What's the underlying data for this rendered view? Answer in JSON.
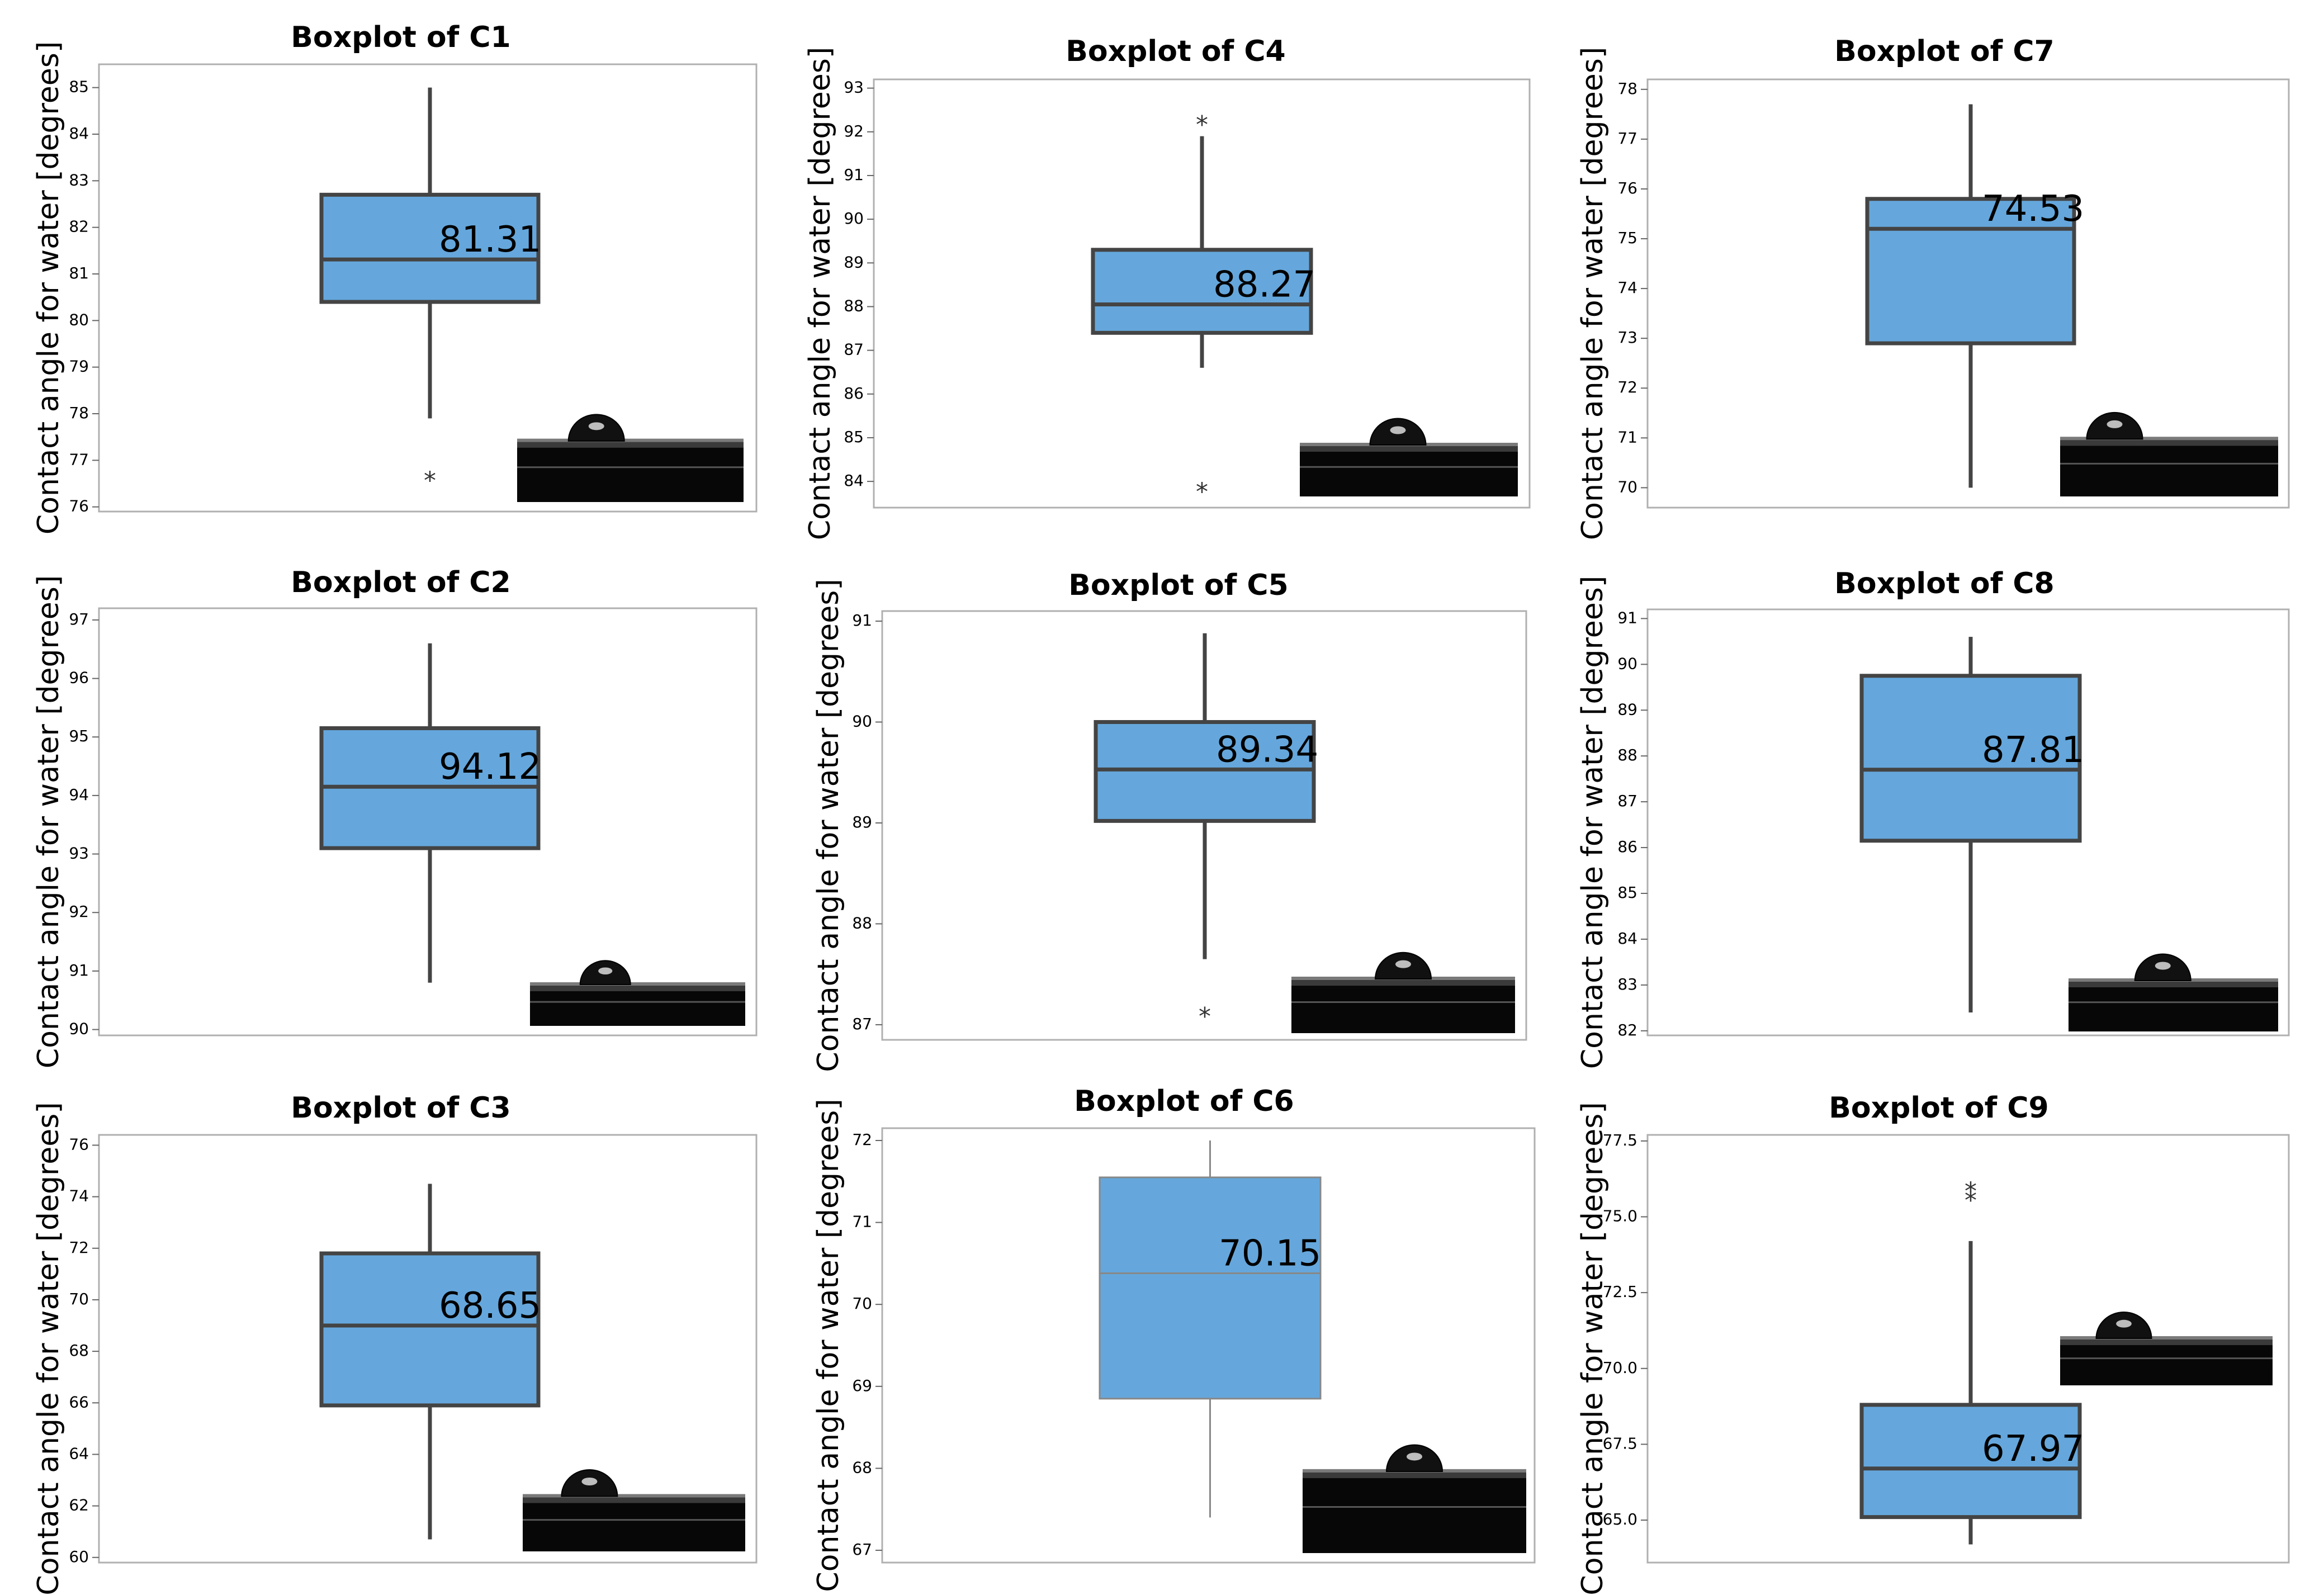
{
  "chart_data": [
    {
      "type": "box",
      "title": "Boxplot of C1",
      "ylabel": "Contact angle for water [degrees]",
      "ylim": [
        75.9,
        85.5
      ],
      "ticks": [
        76,
        77,
        78,
        79,
        80,
        81,
        82,
        83,
        84,
        85
      ],
      "q1": 80.4,
      "median": 81.31,
      "q3": 82.7,
      "whisker_low": 77.9,
      "whisker_high": 85.0,
      "outliers": [
        76.6
      ],
      "label": "81.31",
      "colors": {
        "box": "#65a7dc",
        "edge": "#444444"
      }
    },
    {
      "type": "box",
      "title": "Boxplot of C4",
      "ylabel": "Contact angle for water [degrees]",
      "ylim": [
        83.4,
        93.2
      ],
      "ticks": [
        84,
        85,
        86,
        87,
        88,
        89,
        90,
        91,
        92,
        93
      ],
      "q1": 87.4,
      "median": 88.05,
      "q3": 89.3,
      "whisker_low": 86.6,
      "whisker_high": 91.9,
      "outliers": [
        92.2,
        83.8
      ],
      "label": "88.27",
      "colors": {
        "box": "#65a7dc",
        "edge": "#444444"
      }
    },
    {
      "type": "box",
      "title": "Boxplot of C7",
      "ylabel": "Contact angle for water [degrees]",
      "ylim": [
        69.6,
        78.2
      ],
      "ticks": [
        70,
        71,
        72,
        73,
        74,
        75,
        76,
        77,
        78
      ],
      "q1": 72.9,
      "median": 75.2,
      "q3": 75.8,
      "whisker_low": 70.0,
      "whisker_high": 77.7,
      "outliers": [],
      "label": "74.53",
      "colors": {
        "box": "#65a7dc",
        "edge": "#444444"
      }
    },
    {
      "type": "box",
      "title": "Boxplot of C2",
      "ylabel": "Contact angle for water [degrees]",
      "ylim": [
        89.9,
        97.2
      ],
      "ticks": [
        90,
        91,
        92,
        93,
        94,
        95,
        96,
        97
      ],
      "q1": 93.1,
      "median": 94.15,
      "q3": 95.15,
      "whisker_low": 90.8,
      "whisker_high": 96.6,
      "outliers": [],
      "label": "94.12",
      "colors": {
        "box": "#65a7dc",
        "edge": "#444444"
      }
    },
    {
      "type": "box",
      "title": "Boxplot of C5",
      "ylabel": "Contact angle for water [degrees]",
      "ylim": [
        86.85,
        91.1
      ],
      "ticks": [
        87,
        88,
        89,
        90,
        91
      ],
      "q1": 89.02,
      "median": 89.53,
      "q3": 90.0,
      "whisker_low": 87.65,
      "whisker_high": 90.88,
      "outliers": [
        87.1
      ],
      "label": "89.34",
      "colors": {
        "box": "#65a7dc",
        "edge": "#444444"
      }
    },
    {
      "type": "box",
      "title": "Boxplot of C8",
      "ylabel": "Contact angle for water [degrees]",
      "ylim": [
        81.9,
        91.2
      ],
      "ticks": [
        82,
        83,
        84,
        85,
        86,
        87,
        88,
        89,
        90,
        91
      ],
      "q1": 86.15,
      "median": 87.7,
      "q3": 89.75,
      "whisker_low": 82.4,
      "whisker_high": 90.6,
      "outliers": [],
      "label": "87.81",
      "colors": {
        "box": "#65a7dc",
        "edge": "#444444"
      }
    },
    {
      "type": "box",
      "title": "Boxplot of C3",
      "ylabel": "Contact angle for water [degrees]",
      "ylim": [
        59.8,
        76.4
      ],
      "ticks": [
        60,
        62,
        64,
        66,
        68,
        70,
        72,
        74,
        76
      ],
      "q1": 65.9,
      "median": 69.0,
      "q3": 71.8,
      "whisker_low": 60.7,
      "whisker_high": 74.5,
      "outliers": [],
      "label": "68.65",
      "colors": {
        "box": "#65a7dc",
        "edge": "#444444"
      }
    },
    {
      "type": "box",
      "title": "Boxplot of C6",
      "ylabel": "Contact angle for water [degrees]",
      "ylim": [
        66.85,
        72.15
      ],
      "ticks": [
        67,
        68,
        69,
        70,
        71,
        72
      ],
      "q1": 68.85,
      "median": 70.38,
      "q3": 71.55,
      "whisker_low": 67.4,
      "whisker_high": 72.0,
      "outliers": [],
      "label": "70.15",
      "colors": {
        "box": "#65a7dc",
        "edge": "#888888"
      }
    },
    {
      "type": "box",
      "title": "Boxplot of C9",
      "ylabel": "Contact angle for water [degrees]",
      "ylim": [
        63.6,
        77.7
      ],
      "ticks": [
        65.0,
        67.5,
        70.0,
        72.5,
        75.0,
        77.5
      ],
      "q1": 65.1,
      "median": 66.7,
      "q3": 68.8,
      "whisker_low": 64.2,
      "whisker_high": 74.2,
      "outliers": [
        75.6,
        75.9
      ],
      "label": "67.97",
      "colors": {
        "box": "#65a7dc",
        "edge": "#444444"
      }
    }
  ],
  "thumbnails": [
    {
      "name": "droplet-photo-c1"
    },
    {
      "name": "droplet-photo-c4"
    },
    {
      "name": "droplet-photo-c7"
    },
    {
      "name": "droplet-photo-c2"
    },
    {
      "name": "droplet-photo-c5"
    },
    {
      "name": "droplet-photo-c8"
    },
    {
      "name": "droplet-photo-c3"
    },
    {
      "name": "droplet-photo-c6"
    },
    {
      "name": "droplet-photo-c9"
    }
  ]
}
